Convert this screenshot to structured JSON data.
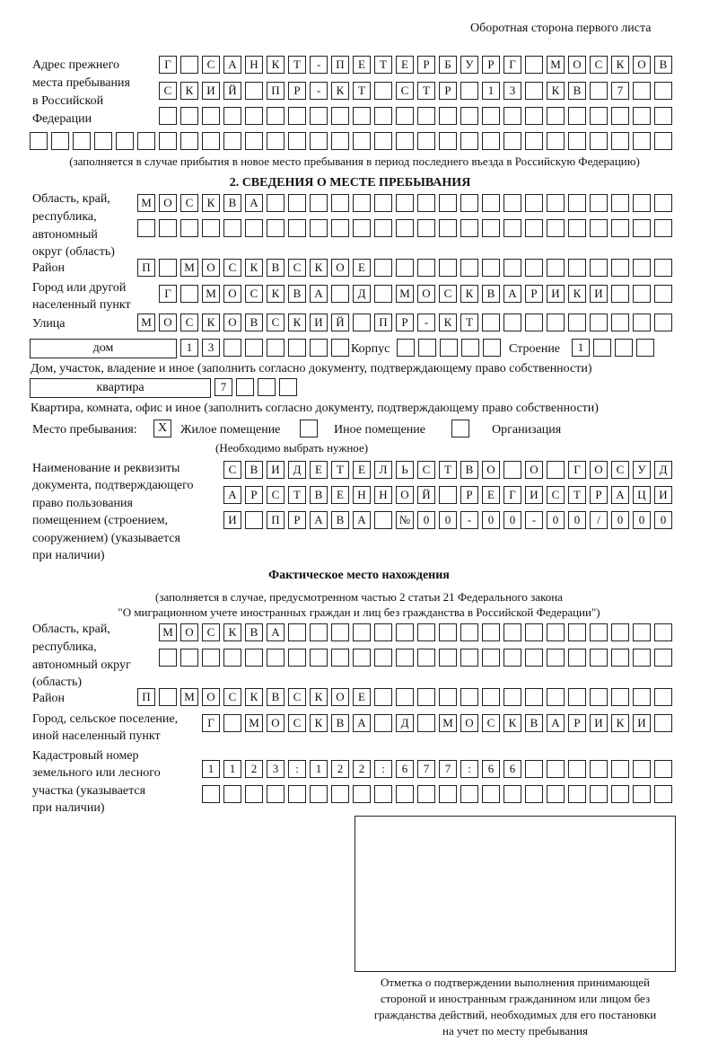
{
  "header": {
    "side_title": "Оборотная сторона первого листа"
  },
  "prev_address": {
    "label": [
      "Адрес прежнего",
      "места пребывания",
      "в Российской",
      "Федерации"
    ],
    "rows": [
      [
        "Г",
        "",
        "С",
        "А",
        "Н",
        "К",
        "Т",
        "-",
        "П",
        "Е",
        "Т",
        "Е",
        "Р",
        "Б",
        "У",
        "Р",
        "Г",
        "",
        "М",
        "О",
        "С",
        "К",
        "О",
        "В"
      ],
      [
        "С",
        "К",
        "И",
        "Й",
        "",
        "П",
        "Р",
        "-",
        "К",
        "Т",
        "",
        "С",
        "Т",
        "Р",
        "",
        "1",
        "3",
        "",
        "К",
        "В",
        "",
        "7",
        "",
        ""
      ],
      [
        "",
        "",
        "",
        "",
        "",
        "",
        "",
        "",
        "",
        "",
        "",
        "",
        "",
        "",
        "",
        "",
        "",
        "",
        "",
        "",
        "",
        "",
        "",
        ""
      ],
      [
        "",
        "",
        "",
        "",
        "",
        "",
        "",
        "",
        "",
        "",
        "",
        "",
        "",
        "",
        "",
        "",
        "",
        "",
        "",
        "",
        "",
        "",
        "",
        "",
        "",
        "",
        "",
        "",
        "",
        ""
      ]
    ],
    "note": "(заполняется в случае прибытия в новое место пребывания в период последнего въезда в Российскую Федерацию)"
  },
  "section2": {
    "title": "2. СВЕДЕНИЯ О МЕСТЕ ПРЕБЫВАНИЯ",
    "region_label": [
      "Область, край,",
      "республика,",
      "автономный",
      "округ (область)"
    ],
    "region_rows": [
      [
        "М",
        "О",
        "С",
        "К",
        "В",
        "А",
        "",
        "",
        "",
        "",
        "",
        "",
        "",
        "",
        "",
        "",
        "",
        "",
        "",
        "",
        "",
        "",
        "",
        "",
        ""
      ],
      [
        "",
        "",
        "",
        "",
        "",
        "",
        "",
        "",
        "",
        "",
        "",
        "",
        "",
        "",
        "",
        "",
        "",
        "",
        "",
        "",
        "",
        "",
        "",
        "",
        ""
      ]
    ],
    "district_label": "Район",
    "district_row": [
      "П",
      "",
      "М",
      "О",
      "С",
      "К",
      "В",
      "С",
      "К",
      "О",
      "Е",
      "",
      "",
      "",
      "",
      "",
      "",
      "",
      "",
      "",
      "",
      "",
      "",
      "",
      ""
    ],
    "city_label": [
      "Город или другой",
      "населенный пункт"
    ],
    "city_row": [
      "Г",
      "",
      "М",
      "О",
      "С",
      "К",
      "В",
      "А",
      "",
      "Д",
      "",
      "М",
      "О",
      "С",
      "К",
      "В",
      "А",
      "Р",
      "И",
      "К",
      "И",
      "",
      "",
      ""
    ],
    "street_label": "Улица",
    "street_row": [
      "М",
      "О",
      "С",
      "К",
      "О",
      "В",
      "С",
      "К",
      "И",
      "Й",
      "",
      "П",
      "Р",
      "-",
      "К",
      "Т",
      "",
      "",
      "",
      "",
      "",
      "",
      "",
      "",
      ""
    ],
    "house_type": "дом",
    "house_row": [
      "1",
      "3",
      "",
      "",
      "",
      "",
      "",
      ""
    ],
    "korpus_label": "Корпус",
    "korpus_row": [
      "",
      "",
      "",
      "",
      ""
    ],
    "building_label": "Строение",
    "building_row": [
      "1",
      "",
      "",
      ""
    ],
    "house_note": "Дом, участок, владение и иное (заполнить согласно документу, подтверждающему право собственности)",
    "flat_type": "квартира",
    "flat_row": [
      "7",
      "",
      "",
      ""
    ],
    "flat_note": "Квартира, комната, офис и иное (заполнить согласно документу, подтверждающему право собственности)",
    "stay_label": "Место пребывания:",
    "stay_options": [
      {
        "label": "Жилое помещение",
        "mark": "X"
      },
      {
        "label": "Иное помещение",
        "mark": ""
      },
      {
        "label": "Организация",
        "mark": ""
      }
    ],
    "stay_note": "(Необходимо выбрать нужное)",
    "doc_label": [
      "Наименование и реквизиты",
      "документа, подтверждающего",
      "право пользования",
      "помещением (строением,",
      "сооружением) (указывается",
      "при наличии)"
    ],
    "doc_rows": [
      [
        "С",
        "В",
        "И",
        "Д",
        "Е",
        "Т",
        "Е",
        "Л",
        "Ь",
        "С",
        "Т",
        "В",
        "О",
        "",
        "О",
        "",
        "Г",
        "О",
        "С",
        "У",
        "Д"
      ],
      [
        "А",
        "Р",
        "С",
        "Т",
        "В",
        "Е",
        "Н",
        "Н",
        "О",
        "Й",
        "",
        "Р",
        "Е",
        "Г",
        "И",
        "С",
        "Т",
        "Р",
        "А",
        "Ц",
        "И"
      ],
      [
        "И",
        "",
        "П",
        "Р",
        "А",
        "В",
        "А",
        "",
        "№",
        "0",
        "0",
        "-",
        "0",
        "0",
        "-",
        "0",
        "0",
        "/",
        "0",
        "0",
        "0"
      ]
    ]
  },
  "actual": {
    "title": "Фактическое место нахождения",
    "note": [
      "(заполняется в случае, предусмотренном частью 2 статьи 21 Федерального закона",
      "\"О миграционном учете иностранных граждан и лиц без гражданства в Российской Федерации\")"
    ],
    "region_label": [
      "Область, край,",
      "республика,",
      "автономный округ",
      "(область)"
    ],
    "region_rows": [
      [
        "М",
        "О",
        "С",
        "К",
        "В",
        "А",
        "",
        "",
        "",
        "",
        "",
        "",
        "",
        "",
        "",
        "",
        "",
        "",
        "",
        "",
        "",
        "",
        "",
        ""
      ],
      [
        "",
        "",
        "",
        "",
        "",
        "",
        "",
        "",
        "",
        "",
        "",
        "",
        "",
        "",
        "",
        "",
        "",
        "",
        "",
        "",
        "",
        "",
        "",
        ""
      ]
    ],
    "district_label": "Район",
    "district_row": [
      "П",
      "",
      "М",
      "О",
      "С",
      "К",
      "В",
      "С",
      "К",
      "О",
      "Е",
      "",
      "",
      "",
      "",
      "",
      "",
      "",
      "",
      "",
      "",
      "",
      "",
      "",
      ""
    ],
    "city_label": [
      "Город, сельское поселение,",
      "иной населенный пункт"
    ],
    "city_row": [
      "Г",
      "",
      "М",
      "О",
      "С",
      "К",
      "В",
      "А",
      "",
      "Д",
      "",
      "М",
      "О",
      "С",
      "К",
      "В",
      "А",
      "Р",
      "И",
      "К",
      "И",
      ""
    ],
    "cadastral_label": [
      "Кадастровый номер",
      "земельного или лесного",
      "участка (указывается",
      "при наличии)"
    ],
    "cadastral_rows": [
      [
        "1",
        "1",
        "2",
        "3",
        ":",
        "1",
        "2",
        "2",
        ":",
        "6",
        "7",
        "7",
        ":",
        "6",
        "6",
        "",
        "",
        "",
        "",
        "",
        "",
        ""
      ],
      [
        "",
        "",
        "",
        "",
        "",
        "",
        "",
        "",
        "",
        "",
        "",
        "",
        "",
        "",
        "",
        "",
        "",
        "",
        "",
        "",
        "",
        ""
      ]
    ],
    "stamp_caption": [
      "Отметка о подтверждении выполнения принимающей",
      "стороной и иностранным гражданином или лицом без",
      "гражданства действий, необходимых для его постановки",
      "на учет по месту пребывания"
    ]
  }
}
